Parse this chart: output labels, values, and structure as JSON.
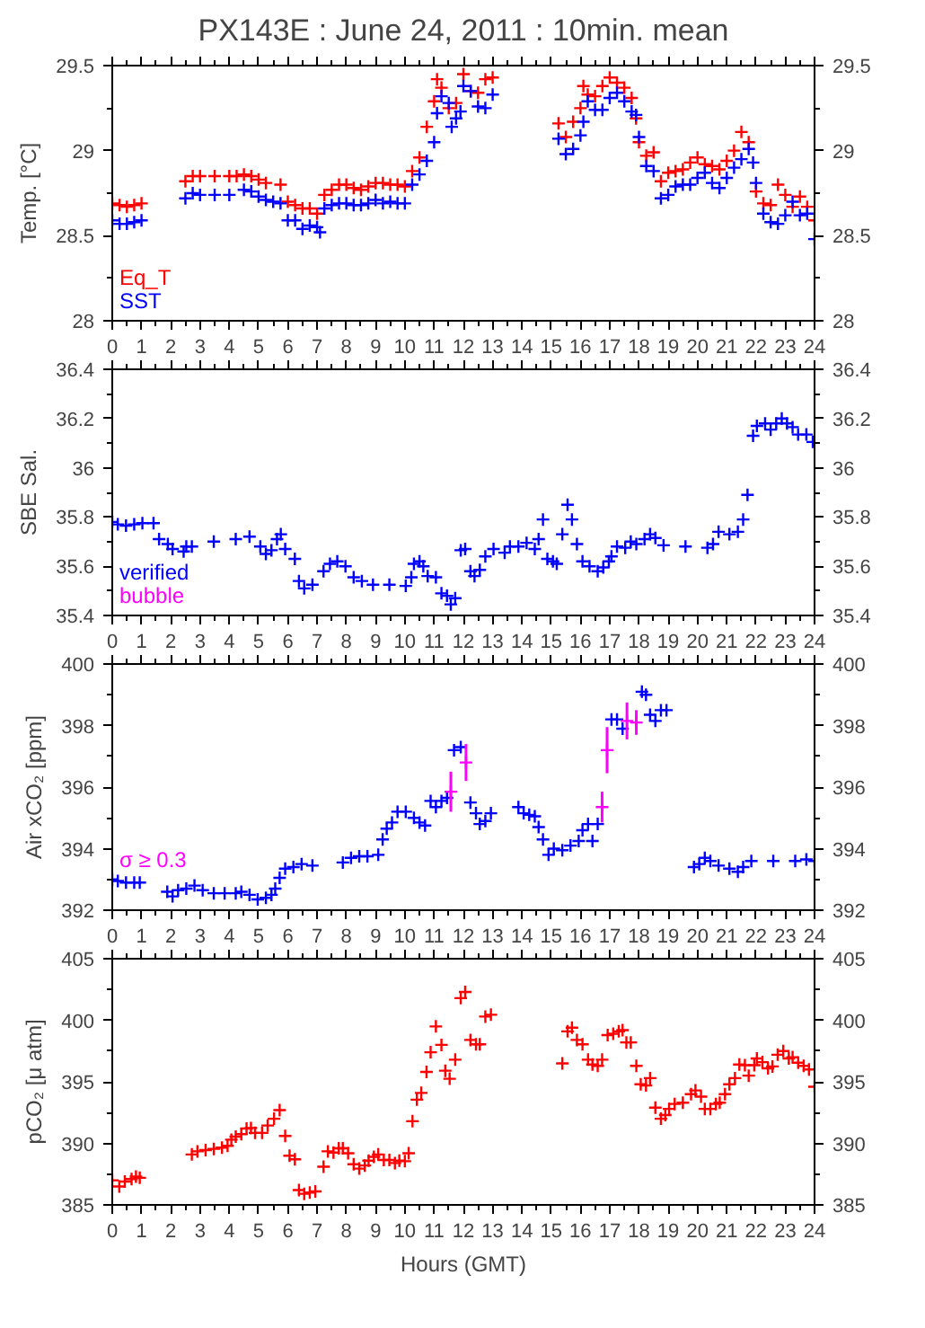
{
  "chart_data": [
    {
      "type": "scatter",
      "title": "PX143E : June 24, 2011 : 10min. mean",
      "ylabel": "Temp. [°C]",
      "xlim": [
        0,
        24
      ],
      "xticks": [
        0,
        1,
        2,
        3,
        4,
        5,
        6,
        7,
        8,
        9,
        10,
        11,
        12,
        13,
        14,
        15,
        16,
        17,
        18,
        19,
        20,
        21,
        22,
        23,
        24
      ],
      "ylim": [
        28,
        29.5
      ],
      "yticks": [
        28,
        28.5,
        29,
        29.5
      ],
      "y2lim": [
        28,
        29.5
      ],
      "y2ticks": [
        28,
        28.5,
        29,
        29.5
      ],
      "marker": "cross",
      "grid": false,
      "legend": "bottom left",
      "series": [
        {
          "name": "Eq_T",
          "color": "#ff0000",
          "x": [
            0,
            0.25,
            0.5,
            0.75,
            1,
            2.5,
            2.75,
            3,
            3.5,
            4,
            4.25,
            4.5,
            4.75,
            5,
            5.25,
            5.75,
            6,
            6.25,
            6.5,
            6.75,
            7,
            7.25,
            7.5,
            7.75,
            8,
            8.25,
            8.5,
            8.75,
            9,
            9.25,
            9.5,
            9.75,
            10,
            10.25,
            10.5,
            10.75,
            11,
            11.1,
            11.25,
            11.5,
            11.75,
            12,
            12.25,
            12.5,
            12.75,
            13,
            15.25,
            15.5,
            15.75,
            16,
            16.1,
            16.25,
            16.5,
            16.75,
            17,
            17.25,
            17.5,
            17.75,
            17.9,
            18,
            18.25,
            18.5,
            18.75,
            19,
            19.25,
            19.5,
            19.75,
            20,
            20.25,
            20.5,
            20.75,
            21,
            21.25,
            21.5,
            21.75,
            22,
            22.25,
            22.5,
            22.75,
            23,
            23.25,
            23.5,
            23.75,
            24
          ],
          "values": [
            28.69,
            28.68,
            28.67,
            28.68,
            28.69,
            28.82,
            28.85,
            28.85,
            28.85,
            28.85,
            28.85,
            28.86,
            28.85,
            28.83,
            28.81,
            28.8,
            28.7,
            28.68,
            28.66,
            28.66,
            28.63,
            28.74,
            28.77,
            28.8,
            28.8,
            28.78,
            28.77,
            28.79,
            28.81,
            28.81,
            28.8,
            28.8,
            28.79,
            28.88,
            28.96,
            29.14,
            29.29,
            29.42,
            29.37,
            29.25,
            29.28,
            29.45,
            29.35,
            29.34,
            29.42,
            29.43,
            29.16,
            29.08,
            29.17,
            29.25,
            29.38,
            29.33,
            29.32,
            29.38,
            29.43,
            29.4,
            29.37,
            29.31,
            29.19,
            29.05,
            28.97,
            28.99,
            28.82,
            28.87,
            28.88,
            28.89,
            28.93,
            28.96,
            28.92,
            28.91,
            28.89,
            28.94,
            29.0,
            29.11,
            29.05,
            28.76,
            28.69,
            28.68,
            28.8,
            28.74,
            28.67,
            28.73,
            28.67,
            28.59
          ]
        },
        {
          "name": "SST",
          "color": "#0000ff",
          "x": [
            0,
            0.25,
            0.5,
            0.75,
            1,
            2.5,
            2.75,
            3,
            3.5,
            4,
            4.5,
            4.75,
            5,
            5.25,
            5.5,
            5.75,
            6,
            6.25,
            6.5,
            6.75,
            7,
            7.1,
            7.25,
            7.5,
            7.75,
            8,
            8.25,
            8.5,
            8.75,
            9,
            9.25,
            9.5,
            9.75,
            10,
            10.25,
            10.5,
            10.75,
            11,
            11.1,
            11.25,
            11.5,
            11.6,
            11.75,
            11.9,
            12,
            12.25,
            12.5,
            12.75,
            13,
            15.25,
            15.5,
            15.75,
            16,
            16.1,
            16.25,
            16.5,
            16.75,
            17,
            17.25,
            17.5,
            17.75,
            17.9,
            18,
            18.25,
            18.5,
            18.75,
            19,
            19.25,
            19.5,
            19.75,
            20,
            20.25,
            20.5,
            20.75,
            21,
            21.25,
            21.5,
            21.75,
            21.9,
            22,
            22.25,
            22.5,
            22.75,
            23,
            23.25,
            23.5,
            23.75,
            24
          ],
          "values": [
            28.59,
            28.57,
            28.57,
            28.58,
            28.59,
            28.72,
            28.75,
            28.74,
            28.74,
            28.74,
            28.77,
            28.76,
            28.73,
            28.71,
            28.7,
            28.69,
            28.59,
            28.59,
            28.54,
            28.56,
            28.55,
            28.52,
            28.66,
            28.68,
            28.69,
            28.69,
            28.68,
            28.68,
            28.69,
            28.71,
            28.69,
            28.7,
            28.69,
            28.69,
            28.8,
            28.86,
            28.94,
            29.05,
            29.22,
            29.32,
            29.28,
            29.14,
            29.19,
            29.23,
            29.38,
            29.35,
            29.26,
            29.25,
            29.33,
            29.07,
            28.98,
            29.01,
            29.09,
            29.17,
            29.29,
            29.24,
            29.24,
            29.31,
            29.34,
            29.29,
            29.23,
            29.21,
            29.08,
            28.91,
            28.88,
            28.72,
            28.74,
            28.79,
            28.8,
            28.8,
            28.84,
            28.87,
            28.81,
            28.78,
            28.84,
            28.9,
            28.95,
            29.01,
            28.93,
            28.81,
            28.63,
            28.58,
            28.57,
            28.62,
            28.7,
            28.62,
            28.63,
            28.48
          ]
        }
      ]
    },
    {
      "type": "scatter",
      "ylabel": "SBE Sal.",
      "xlim": [
        0,
        24
      ],
      "xticks": [
        0,
        1,
        2,
        3,
        4,
        5,
        6,
        7,
        8,
        9,
        10,
        11,
        12,
        13,
        14,
        15,
        16,
        17,
        18,
        19,
        20,
        21,
        22,
        23,
        24
      ],
      "ylim": [
        35.4,
        36.4
      ],
      "yticks": [
        35.4,
        35.6,
        35.8,
        36,
        36.2,
        36.4
      ],
      "y2lim": [
        35.4,
        36.4
      ],
      "y2ticks": [
        35.4,
        35.6,
        35.8,
        36,
        36.2,
        36.4
      ],
      "marker": "cross",
      "grid": false,
      "legend": "bottom left",
      "series": [
        {
          "name": "verified",
          "color": "#0000ff",
          "x": [
            0,
            0.19,
            0.47,
            0.75,
            1.03,
            1.41,
            1.6,
            1.9,
            2.06,
            2.44,
            2.53,
            2.72,
            3.47,
            4.22,
            4.69,
            5.06,
            5.25,
            5.44,
            5.63,
            5.76,
            5.91,
            6.24,
            6.38,
            6.56,
            6.84,
            7.22,
            7.44,
            7.69,
            7.97,
            8.25,
            8.53,
            8.91,
            9.47,
            10.03,
            10.22,
            10.31,
            10.5,
            10.63,
            10.78,
            11.06,
            11.25,
            11.44,
            11.57,
            11.72,
            11.91,
            12.06,
            12.24,
            12.38,
            12.56,
            12.75,
            13.03,
            13.41,
            13.59,
            13.88,
            14.16,
            14.44,
            14.57,
            14.72,
            14.87,
            15.06,
            15.19,
            15.38,
            15.56,
            15.71,
            15.88,
            16.07,
            16.31,
            16.59,
            16.78,
            16.97,
            17.06,
            17.25,
            17.53,
            17.72,
            17.91,
            18.19,
            18.38,
            18.56,
            18.84,
            19.59,
            20.34,
            20.53,
            20.72,
            21.09,
            21.38,
            21.56,
            21.71,
            21.9,
            22.03,
            22.31,
            22.5,
            22.69,
            22.88,
            23.06,
            23.25,
            23.44,
            23.72,
            23.94
          ],
          "values": [
            35.78,
            35.77,
            35.765,
            35.77,
            35.775,
            35.775,
            35.71,
            35.69,
            35.67,
            35.66,
            35.68,
            35.68,
            35.7,
            35.71,
            35.72,
            35.68,
            35.65,
            35.665,
            35.71,
            35.73,
            35.67,
            35.63,
            35.54,
            35.51,
            35.525,
            35.58,
            35.61,
            35.62,
            35.6,
            35.555,
            35.54,
            35.525,
            35.525,
            35.52,
            35.555,
            35.61,
            35.62,
            35.6,
            35.56,
            35.555,
            35.49,
            35.48,
            35.445,
            35.47,
            35.665,
            35.67,
            35.58,
            35.56,
            35.585,
            35.64,
            35.67,
            35.655,
            35.68,
            35.68,
            35.695,
            35.67,
            35.71,
            35.79,
            35.63,
            35.62,
            35.61,
            35.73,
            35.85,
            35.79,
            35.69,
            35.62,
            35.6,
            35.58,
            35.595,
            35.62,
            35.64,
            35.68,
            35.675,
            35.7,
            35.69,
            35.71,
            35.73,
            35.715,
            35.685,
            35.68,
            35.675,
            35.69,
            35.74,
            35.73,
            35.74,
            35.79,
            35.89,
            36.13,
            36.17,
            36.18,
            36.155,
            36.18,
            36.2,
            36.18,
            36.165,
            36.135,
            36.135,
            36.105
          ]
        },
        {
          "name": "bubble",
          "color": "#ff00ff"
        }
      ]
    },
    {
      "type": "scatter",
      "ylabel": "Air xCO₂ [ppm]",
      "xlim": [
        0,
        24
      ],
      "xticks": [
        0,
        1,
        2,
        3,
        4,
        5,
        6,
        7,
        8,
        9,
        10,
        11,
        12,
        13,
        14,
        15,
        16,
        17,
        18,
        19,
        20,
        21,
        22,
        23,
        24
      ],
      "ylim": [
        392,
        400
      ],
      "yticks": [
        392,
        394,
        396,
        398,
        400
      ],
      "y2lim": [
        392,
        400
      ],
      "y2ticks": [
        392,
        394,
        396,
        398,
        400
      ],
      "marker": "cross",
      "grid": false,
      "legend": "bottom left",
      "series": [
        {
          "color": "#0000ff",
          "x": [
            0,
            0.19,
            0.47,
            0.75,
            0.94,
            1.88,
            2.06,
            2.25,
            2.53,
            2.81,
            3.09,
            3.47,
            3.84,
            4.22,
            4.41,
            4.69,
            4.97,
            5.25,
            5.44,
            5.57,
            5.72,
            5.91,
            6.19,
            6.47,
            6.84,
            7.88,
            8.16,
            8.44,
            8.72,
            9.09,
            9.24,
            9.38,
            9.56,
            9.75,
            10.03,
            10.31,
            10.5,
            10.69,
            10.88,
            11.06,
            11.25,
            11.44,
            11.68,
            11.91,
            12.24,
            12.43,
            12.56,
            12.75,
            12.94,
            13.88,
            14.06,
            14.25,
            14.44,
            14.57,
            14.72,
            14.91,
            15.09,
            15.38,
            15.66,
            15.94,
            16.07,
            16.26,
            16.41,
            16.59,
            17.06,
            17.25,
            17.44,
            18.1,
            18.24,
            18.38,
            18.56,
            18.75,
            18.94,
            19.88,
            20.06,
            20.25,
            20.44,
            20.72,
            21.09,
            21.38,
            21.56,
            21.84,
            22.59,
            23.34,
            23.72,
            24
          ],
          "values": [
            393.0,
            392.95,
            392.9,
            392.9,
            392.9,
            392.6,
            392.45,
            392.65,
            392.7,
            392.8,
            392.65,
            392.55,
            392.55,
            392.55,
            392.6,
            392.5,
            392.35,
            392.4,
            392.5,
            392.7,
            393.05,
            393.35,
            393.4,
            393.5,
            393.45,
            393.55,
            393.7,
            393.75,
            393.75,
            393.8,
            394.3,
            394.65,
            394.85,
            395.2,
            395.2,
            395.0,
            394.85,
            394.75,
            395.55,
            395.35,
            395.55,
            395.65,
            397.2,
            397.3,
            395.5,
            395.15,
            394.8,
            394.9,
            395.15,
            395.35,
            395.15,
            395.1,
            395.05,
            394.7,
            394.3,
            393.8,
            394.0,
            393.95,
            394.1,
            394.25,
            394.6,
            394.8,
            394.25,
            394.8,
            398.2,
            398.2,
            397.9,
            399.1,
            399.0,
            398.35,
            398.15,
            398.5,
            398.5,
            393.4,
            393.5,
            393.7,
            393.6,
            393.45,
            393.35,
            393.25,
            393.4,
            393.6,
            393.6,
            393.6,
            393.65,
            393.6
          ]
        },
        {
          "name": "σ ≥ 0.3",
          "color": "#ff00ff",
          "x": [
            11.57,
            12.09,
            16.74,
            16.91,
            17.59,
            17.91
          ],
          "values": [
            395.85,
            396.8,
            395.35,
            397.2,
            398.15,
            398.1
          ],
          "errors": [
            0.65,
            0.6,
            0.5,
            0.75,
            0.6,
            0.4
          ]
        }
      ]
    },
    {
      "type": "scatter",
      "ylabel": "pCO₂ [μ atm]",
      "xlabel": "Hours (GMT)",
      "xlim": [
        0,
        24
      ],
      "xticks": [
        0,
        1,
        2,
        3,
        4,
        5,
        6,
        7,
        8,
        9,
        10,
        11,
        12,
        13,
        14,
        15,
        16,
        17,
        18,
        19,
        20,
        21,
        22,
        23,
        24
      ],
      "ylim": [
        385,
        405
      ],
      "yticks": [
        385,
        390,
        395,
        400,
        405
      ],
      "y2lim": [
        385,
        405
      ],
      "y2ticks": [
        385,
        390,
        395,
        400,
        405
      ],
      "marker": "cross",
      "grid": false,
      "series": [
        {
          "color": "#ff0000",
          "x": [
            0,
            0.24,
            0.43,
            0.66,
            0.81,
            0.94,
            2.72,
            2.91,
            3.19,
            3.47,
            3.75,
            3.94,
            4.07,
            4.22,
            4.41,
            4.59,
            4.74,
            4.88,
            5.12,
            5.31,
            5.53,
            5.72,
            5.91,
            6.06,
            6.24,
            6.38,
            6.56,
            6.75,
            6.94,
            7.22,
            7.37,
            7.56,
            7.74,
            7.88,
            8.06,
            8.25,
            8.44,
            8.63,
            8.76,
            8.94,
            9.09,
            9.28,
            9.47,
            9.66,
            9.81,
            10.0,
            10.13,
            10.26,
            10.41,
            10.56,
            10.74,
            10.88,
            11.06,
            11.25,
            11.38,
            11.53,
            11.72,
            11.91,
            12.06,
            12.24,
            12.43,
            12.56,
            12.75,
            12.94,
            15.38,
            15.56,
            15.71,
            15.88,
            16.07,
            16.26,
            16.41,
            16.59,
            16.74,
            16.93,
            17.12,
            17.31,
            17.44,
            17.57,
            17.72,
            17.91,
            18.06,
            18.24,
            18.38,
            18.56,
            18.75,
            18.9,
            19.03,
            19.22,
            19.5,
            19.78,
            19.93,
            20.12,
            20.25,
            20.44,
            20.63,
            20.76,
            20.94,
            21.09,
            21.28,
            21.43,
            21.62,
            21.75,
            21.94,
            22.03,
            22.22,
            22.41,
            22.56,
            22.74,
            22.93,
            23.12,
            23.25,
            23.44,
            23.63,
            23.81,
            24
          ],
          "values": [
            387.0,
            386.5,
            386.9,
            387.1,
            387.3,
            387.2,
            389.1,
            389.35,
            389.45,
            389.55,
            389.65,
            389.8,
            390.3,
            390.55,
            390.75,
            391.2,
            391.25,
            390.85,
            390.85,
            391.45,
            392.0,
            392.7,
            390.6,
            389.0,
            388.7,
            386.2,
            385.9,
            386.0,
            386.1,
            388.1,
            389.35,
            389.25,
            389.6,
            389.6,
            389.2,
            388.3,
            387.95,
            388.2,
            388.6,
            388.9,
            389.1,
            388.65,
            388.65,
            388.4,
            388.6,
            388.55,
            389.2,
            391.8,
            393.55,
            394.1,
            395.8,
            397.4,
            399.5,
            398.0,
            395.9,
            395.25,
            396.8,
            401.8,
            402.3,
            398.4,
            398.05,
            398.05,
            400.3,
            400.45,
            396.5,
            399.1,
            399.4,
            398.4,
            398.05,
            396.8,
            396.4,
            396.3,
            396.8,
            398.8,
            398.9,
            399.1,
            399.2,
            398.2,
            398.2,
            396.3,
            394.8,
            394.7,
            395.3,
            392.9,
            392.0,
            392.3,
            392.8,
            393.2,
            393.3,
            394.0,
            394.3,
            393.8,
            392.8,
            392.8,
            393.2,
            393.3,
            394.0,
            394.8,
            395.3,
            396.4,
            396.35,
            395.5,
            396.35,
            396.9,
            396.6,
            396.1,
            396.25,
            397.2,
            397.5,
            396.9,
            397.0,
            396.55,
            396.3,
            396.0,
            394.6
          ]
        }
      ]
    }
  ]
}
